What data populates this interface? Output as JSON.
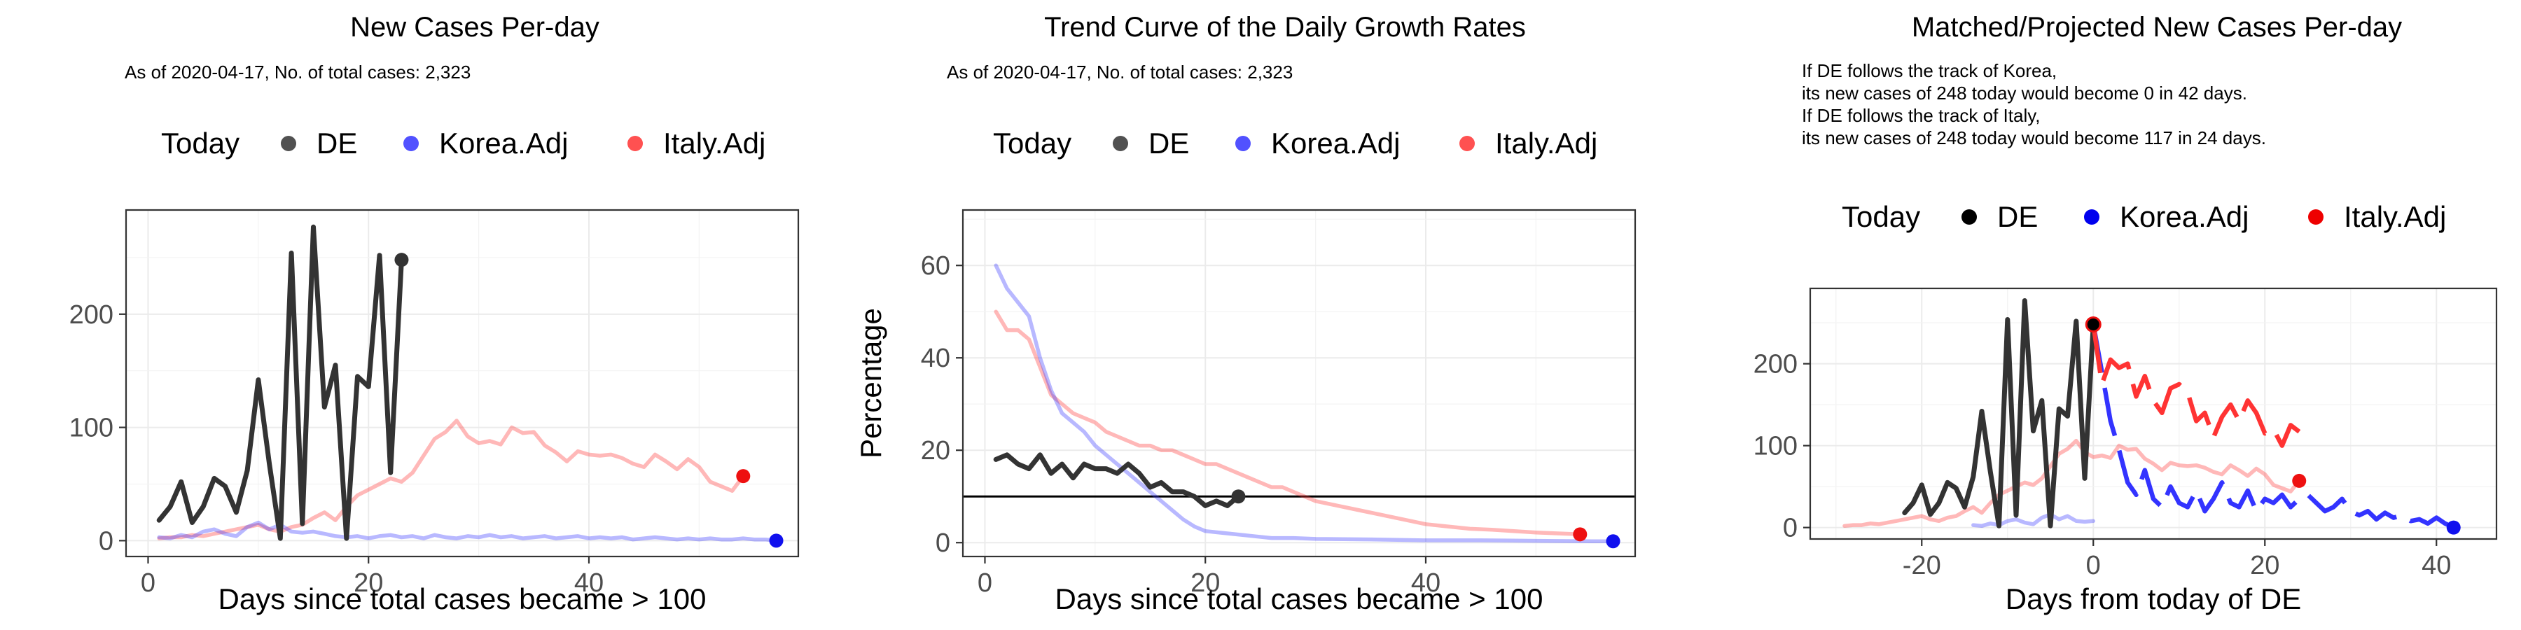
{
  "colors": {
    "today": "#000000",
    "de": "#333333",
    "korea": "#3333ff",
    "italy": "#ff3333"
  },
  "chart_data": [
    {
      "type": "line",
      "title": "New Cases Per-day",
      "subtitle": [
        "As of 2020-04-17, No. of total cases: 2,323"
      ],
      "xlabel": "Days since total cases became > 100",
      "ylabel": "",
      "xlim": [
        -2,
        59
      ],
      "ylim": [
        -14,
        292
      ],
      "xticks": [
        0,
        20,
        40
      ],
      "yticks": [
        0,
        100,
        200
      ],
      "grid": true,
      "legend": {
        "placement": "top",
        "title": "Today",
        "entries": [
          "DE",
          "Korea.Adj",
          "Italy.Adj"
        ]
      },
      "series": [
        {
          "name": "Italy.Adj",
          "style": "faded",
          "color": "#ff3333",
          "x": [
            1,
            2,
            3,
            4,
            5,
            6,
            7,
            8,
            9,
            10,
            11,
            12,
            13,
            14,
            15,
            16,
            17,
            18,
            19,
            20,
            21,
            22,
            23,
            24,
            25,
            26,
            27,
            28,
            29,
            30,
            31,
            32,
            33,
            34,
            35,
            36,
            37,
            38,
            39,
            40,
            41,
            42,
            43,
            44,
            45,
            46,
            47,
            48,
            49,
            50,
            51,
            52,
            53,
            54
          ],
          "y": [
            2,
            3,
            3,
            5,
            4,
            6,
            8,
            10,
            12,
            14,
            10,
            8,
            12,
            14,
            20,
            25,
            18,
            30,
            40,
            45,
            50,
            55,
            52,
            60,
            75,
            90,
            96,
            106,
            92,
            86,
            88,
            85,
            100,
            95,
            96,
            84,
            78,
            70,
            79,
            76,
            75,
            76,
            73,
            68,
            65,
            76,
            70,
            63,
            72,
            65,
            52,
            48,
            44,
            57
          ]
        },
        {
          "name": "Korea.Adj",
          "style": "faded",
          "color": "#3333ff",
          "x": [
            1,
            2,
            3,
            4,
            5,
            6,
            7,
            8,
            9,
            10,
            11,
            12,
            13,
            14,
            15,
            16,
            17,
            18,
            19,
            20,
            21,
            22,
            23,
            24,
            25,
            26,
            27,
            28,
            29,
            30,
            31,
            32,
            33,
            34,
            35,
            36,
            37,
            38,
            39,
            40,
            41,
            42,
            43,
            44,
            45,
            46,
            47,
            48,
            49,
            50,
            51,
            52,
            53,
            54,
            55,
            56,
            57
          ],
          "y": [
            3,
            2,
            5,
            3,
            8,
            10,
            6,
            4,
            12,
            16,
            10,
            14,
            8,
            7,
            8,
            6,
            4,
            3,
            4,
            2,
            4,
            5,
            3,
            4,
            2,
            5,
            3,
            2,
            4,
            3,
            5,
            3,
            4,
            2,
            3,
            4,
            2,
            3,
            4,
            2,
            3,
            2,
            3,
            1,
            2,
            3,
            2,
            1,
            2,
            1,
            2,
            1,
            1,
            2,
            1,
            1,
            0
          ]
        },
        {
          "name": "DE",
          "style": "solid",
          "color": "#333333",
          "x": [
            1,
            2,
            3,
            4,
            5,
            6,
            7,
            8,
            9,
            10,
            11,
            12,
            13,
            14,
            15,
            16,
            17,
            18,
            19,
            20,
            21,
            22,
            23
          ],
          "y": [
            18,
            30,
            52,
            16,
            30,
            55,
            48,
            25,
            62,
            142,
            68,
            2,
            254,
            15,
            277,
            118,
            155,
            2,
            145,
            136,
            252,
            60,
            248
          ]
        }
      ],
      "today_points": [
        {
          "series": "DE",
          "x": 23,
          "y": 248
        },
        {
          "series": "Korea.Adj",
          "x": 57,
          "y": 0
        },
        {
          "series": "Italy.Adj",
          "x": 54,
          "y": 57
        }
      ]
    },
    {
      "type": "line",
      "title": "Trend Curve of the Daily Growth Rates",
      "subtitle": [
        "As of 2020-04-17, No. of total cases: 2,323"
      ],
      "xlabel": "Days since total cases became > 100",
      "ylabel": "Percentage",
      "xlim": [
        -2,
        59
      ],
      "ylim": [
        -3,
        72
      ],
      "xticks": [
        0,
        20,
        40
      ],
      "yticks": [
        0,
        20,
        40,
        60
      ],
      "grid": true,
      "hline": 10,
      "legend": {
        "placement": "top",
        "title": "Today",
        "entries": [
          "DE",
          "Korea.Adj",
          "Italy.Adj"
        ]
      },
      "series": [
        {
          "name": "Italy.Adj",
          "style": "faded",
          "color": "#ff3333",
          "x": [
            1,
            2,
            3,
            4,
            5,
            6,
            7,
            8,
            9,
            10,
            11,
            12,
            13,
            14,
            15,
            16,
            17,
            18,
            19,
            20,
            21,
            22,
            23,
            24,
            25,
            26,
            27,
            28,
            29,
            30,
            32,
            34,
            36,
            38,
            40,
            42,
            44,
            46,
            48,
            50,
            52,
            54
          ],
          "y": [
            50,
            46,
            46,
            44,
            38,
            32,
            30,
            28,
            27,
            26,
            24,
            23,
            22,
            21,
            21,
            20,
            20,
            19,
            18,
            17,
            17,
            16,
            15,
            14,
            13,
            12,
            12,
            11,
            10,
            9,
            8,
            7,
            6,
            5,
            4,
            3.5,
            3,
            2.8,
            2.5,
            2.2,
            2,
            1.8
          ]
        },
        {
          "name": "Korea.Adj",
          "style": "faded",
          "color": "#3333ff",
          "x": [
            1,
            2,
            3,
            4,
            5,
            6,
            7,
            8,
            9,
            10,
            11,
            12,
            13,
            14,
            15,
            16,
            17,
            18,
            19,
            20,
            22,
            24,
            26,
            28,
            30,
            35,
            40,
            45,
            50,
            55,
            57
          ],
          "y": [
            60,
            55,
            52,
            49,
            40,
            33,
            28,
            26,
            24,
            21,
            19,
            17,
            15,
            13,
            11,
            9,
            7,
            5,
            3.5,
            2.5,
            2,
            1.5,
            1,
            1,
            0.8,
            0.7,
            0.5,
            0.5,
            0.4,
            0.3,
            0.3
          ]
        },
        {
          "name": "DE",
          "style": "solid",
          "color": "#333333",
          "x": [
            1,
            2,
            3,
            4,
            5,
            6,
            7,
            8,
            9,
            10,
            11,
            12,
            13,
            14,
            15,
            16,
            17,
            18,
            19,
            20,
            21,
            22,
            23
          ],
          "y": [
            18,
            19,
            17,
            16,
            19,
            15,
            17,
            14,
            17,
            16,
            16,
            15,
            17,
            15,
            12,
            13,
            11,
            11,
            10,
            8,
            9,
            8,
            10
          ]
        }
      ],
      "today_points": [
        {
          "series": "DE",
          "x": 23,
          "y": 10
        },
        {
          "series": "Korea.Adj",
          "x": 57,
          "y": 0.3
        },
        {
          "series": "Italy.Adj",
          "x": 54,
          "y": 1.8
        }
      ]
    },
    {
      "type": "line",
      "title": "Matched/Projected New Cases Per-day",
      "subtitle": [
        "If DE follows the track of Korea,",
        "its new cases of 248 today would become 0 in 42 days.",
        "If DE follows the track of Italy,",
        "its new cases of 248 today would become 117 in 24 days."
      ],
      "xlabel": "Days from today of DE",
      "ylabel": "",
      "xlim": [
        -33,
        47
      ],
      "ylim": [
        -14,
        292
      ],
      "xticks": [
        -20,
        0,
        20,
        40
      ],
      "yticks": [
        0,
        100,
        200
      ],
      "grid": true,
      "legend": {
        "placement": "top",
        "title": "Today",
        "entries": [
          "DE",
          "Korea.Adj",
          "Italy.Adj"
        ]
      },
      "series": [
        {
          "name": "Italy.Adj",
          "style": "faded",
          "color": "#ff3333",
          "x": [
            -29,
            -28,
            -27,
            -26,
            -25,
            -24,
            -23,
            -22,
            -21,
            -20,
            -19,
            -18,
            -17,
            -16,
            -15,
            -14,
            -13,
            -12,
            -11,
            -10,
            -9,
            -8,
            -7,
            -6,
            -5,
            -4,
            -3,
            -2,
            -1,
            0,
            1,
            2,
            3,
            4,
            5,
            6,
            7,
            8,
            9,
            10,
            11,
            12,
            13,
            14,
            15,
            16,
            17,
            18,
            19,
            20,
            21,
            22,
            23,
            24
          ],
          "y": [
            2,
            3,
            3,
            5,
            4,
            6,
            8,
            10,
            12,
            14,
            10,
            8,
            12,
            14,
            20,
            25,
            18,
            30,
            40,
            45,
            50,
            55,
            52,
            60,
            75,
            90,
            96,
            106,
            92,
            86,
            88,
            85,
            100,
            95,
            96,
            84,
            78,
            70,
            79,
            76,
            75,
            76,
            73,
            68,
            65,
            76,
            70,
            63,
            72,
            65,
            52,
            48,
            44,
            57
          ]
        },
        {
          "name": "Korea.Adj",
          "style": "faded",
          "color": "#3333ff",
          "x": [
            -14,
            -13,
            -12,
            -11,
            -10,
            -9,
            -8,
            -7,
            -6,
            -5,
            -4,
            -3,
            -2,
            -1,
            0
          ],
          "y": [
            3,
            2,
            5,
            3,
            8,
            10,
            6,
            4,
            12,
            16,
            10,
            14,
            8,
            7,
            8
          ]
        },
        {
          "name": "DE",
          "style": "solid",
          "color": "#333333",
          "x": [
            -22,
            -21,
            -20,
            -19,
            -18,
            -17,
            -16,
            -15,
            -14,
            -13,
            -12,
            -11,
            -10,
            -9,
            -8,
            -7,
            -6,
            -5,
            -4,
            -3,
            -2,
            -1,
            0
          ],
          "y": [
            18,
            30,
            52,
            16,
            30,
            55,
            48,
            25,
            62,
            142,
            68,
            2,
            254,
            15,
            277,
            118,
            155,
            2,
            145,
            136,
            252,
            60,
            248
          ]
        },
        {
          "name": "Korea.Adj",
          "style": "projected-dashed",
          "color": "#3333ff",
          "x": [
            0,
            1,
            2,
            3,
            4,
            5,
            6,
            7,
            8,
            9,
            10,
            11,
            12,
            13,
            14,
            15,
            16,
            17,
            18,
            19,
            20,
            21,
            22,
            23,
            24,
            25,
            26,
            27,
            28,
            29,
            30,
            31,
            32,
            33,
            34,
            35,
            36,
            37,
            38,
            39,
            40,
            41,
            42
          ],
          "y": [
            248,
            190,
            130,
            95,
            55,
            40,
            70,
            35,
            25,
            50,
            30,
            25,
            45,
            20,
            35,
            55,
            30,
            25,
            45,
            20,
            35,
            30,
            40,
            25,
            35,
            40,
            30,
            20,
            25,
            35,
            20,
            15,
            20,
            10,
            18,
            12,
            15,
            8,
            10,
            5,
            12,
            5,
            0
          ]
        },
        {
          "name": "Italy.Adj",
          "style": "projected-dashed",
          "color": "#ff3333",
          "x": [
            0,
            1,
            2,
            3,
            4,
            5,
            6,
            7,
            8,
            9,
            10,
            11,
            12,
            13,
            14,
            15,
            16,
            17,
            18,
            19,
            20,
            21,
            22,
            23,
            24
          ],
          "y": [
            248,
            175,
            205,
            195,
            200,
            160,
            185,
            155,
            140,
            170,
            175,
            165,
            130,
            140,
            110,
            135,
            150,
            130,
            155,
            140,
            115,
            120,
            100,
            125,
            117
          ]
        }
      ],
      "today_points": [
        {
          "series": "DE",
          "x": 0,
          "y": 248
        },
        {
          "series": "Korea.Adj",
          "x": 42,
          "y": 0
        },
        {
          "series": "Italy.Adj",
          "x": 24,
          "y": 57
        }
      ]
    }
  ]
}
